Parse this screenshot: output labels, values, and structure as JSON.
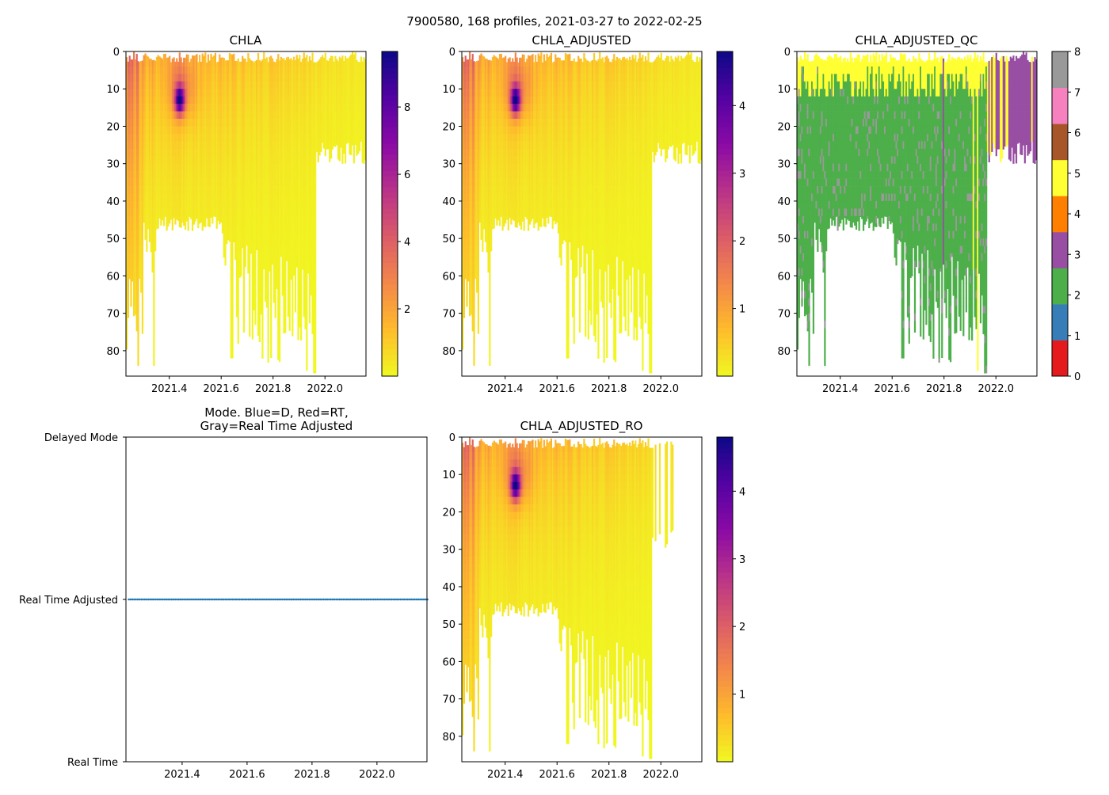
{
  "suptitle": "7900580, 168 profiles, 2021-03-27 to 2022-02-25",
  "colors": {
    "mode_dot": "#1f77b4"
  },
  "chart_data": [
    {
      "id": "chla",
      "type": "heatmap",
      "title": "CHLA",
      "xlim": [
        2021.233,
        2022.158
      ],
      "ylim": [
        86.8,
        0
      ],
      "xticks": [
        "2021.4",
        "2021.6",
        "2021.8",
        "2022.0"
      ],
      "xtick_values": [
        2021.4,
        2021.6,
        2021.8,
        2022.0
      ],
      "yticks": [
        "0",
        "10",
        "20",
        "30",
        "40",
        "50",
        "60",
        "70",
        "80"
      ],
      "ytick_values": [
        0,
        10,
        20,
        30,
        40,
        50,
        60,
        70,
        80
      ],
      "colormap": "plasma_r",
      "clim": [
        0,
        9.65
      ],
      "cbar_ticks": [
        "2",
        "4",
        "6",
        "8"
      ],
      "cbar_tick_values": [
        2,
        4,
        6,
        8
      ],
      "n_profiles": 168,
      "bloom": {
        "time": 2021.44,
        "depth_m": 13,
        "peak": 9.5
      }
    },
    {
      "id": "chla_adjusted",
      "type": "heatmap",
      "title": "CHLA_ADJUSTED",
      "xlim": [
        2021.233,
        2022.158
      ],
      "ylim": [
        86.8,
        0
      ],
      "xticks": [
        "2021.4",
        "2021.6",
        "2021.8",
        "2022.0"
      ],
      "xtick_values": [
        2021.4,
        2021.6,
        2021.8,
        2022.0
      ],
      "yticks": [
        "0",
        "10",
        "20",
        "30",
        "40",
        "50",
        "60",
        "70",
        "80"
      ],
      "ytick_values": [
        0,
        10,
        20,
        30,
        40,
        50,
        60,
        70,
        80
      ],
      "colormap": "plasma_r",
      "clim": [
        0,
        4.8
      ],
      "cbar_ticks": [
        "1",
        "2",
        "3",
        "4"
      ],
      "cbar_tick_values": [
        1,
        2,
        3,
        4
      ],
      "n_profiles": 168,
      "scale_from_chla": 0.5
    },
    {
      "id": "chla_adjusted_qc",
      "type": "heatmap",
      "title": "CHLA_ADJUSTED_QC",
      "xlim": [
        2021.233,
        2022.158
      ],
      "ylim": [
        86.8,
        0
      ],
      "xticks": [
        "2021.4",
        "2021.6",
        "2021.8",
        "2022.0"
      ],
      "xtick_values": [
        2021.4,
        2021.6,
        2021.8,
        2022.0
      ],
      "yticks": [
        "0",
        "10",
        "20",
        "30",
        "40",
        "50",
        "60",
        "70",
        "80"
      ],
      "ytick_values": [
        0,
        10,
        20,
        30,
        40,
        50,
        60,
        70,
        80
      ],
      "clim": [
        0,
        8
      ],
      "cbar_ticks": [
        "0",
        "1",
        "2",
        "3",
        "4",
        "5",
        "6",
        "7",
        "8"
      ],
      "cbar_tick_values": [
        0,
        1,
        2,
        3,
        4,
        5,
        6,
        7,
        8
      ],
      "qc_colors": [
        "#e41a1c",
        "#377eb8",
        "#4daf4a",
        "#984ea3",
        "#ff7f00",
        "#ffff33",
        "#a65628",
        "#f781bf",
        "#999999"
      ]
    },
    {
      "id": "mode",
      "type": "scatter",
      "title_line1": "Mode. Blue=D, Red=RT,",
      "title_line2": "Gray=Real Time Adjusted",
      "xlim": [
        2021.227,
        2022.154
      ],
      "xticks": [
        "2021.4",
        "2021.6",
        "2021.8",
        "2022.0"
      ],
      "xtick_values": [
        2021.4,
        2021.6,
        2021.8,
        2022.0
      ],
      "ycategories": [
        "Real Time",
        "Real Time Adjusted",
        "Delayed Mode"
      ],
      "points_category": "Real Time Adjusted",
      "n_points": 168
    },
    {
      "id": "chla_adjusted_ro",
      "type": "heatmap",
      "title": "CHLA_ADJUSTED_RO",
      "xlim": [
        2021.233,
        2022.158
      ],
      "ylim": [
        86.8,
        0
      ],
      "xticks": [
        "2021.4",
        "2021.6",
        "2021.8",
        "2022.0"
      ],
      "xtick_values": [
        2021.4,
        2021.6,
        2021.8,
        2022.0
      ],
      "yticks": [
        "0",
        "10",
        "20",
        "30",
        "40",
        "50",
        "60",
        "70",
        "80"
      ],
      "ytick_values": [
        0,
        10,
        20,
        30,
        40,
        50,
        60,
        70,
        80
      ],
      "colormap": "plasma_r",
      "clim": [
        0,
        4.8
      ],
      "cbar_ticks": [
        "1",
        "2",
        "3",
        "4"
      ],
      "cbar_tick_values": [
        1,
        2,
        3,
        4
      ],
      "n_profiles": 168
    }
  ]
}
